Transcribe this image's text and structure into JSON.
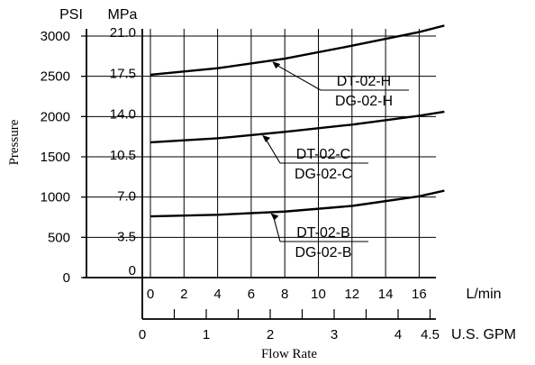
{
  "chart_data": {
    "type": "line",
    "xlabel": "Flow Rate",
    "ylabel": "Pressure",
    "x_unit_primary": "L/min",
    "x_unit_secondary": "U.S. GPM",
    "y_unit_left": "PSI",
    "y_unit_right": "MPa",
    "xlim": [
      0,
      17.5
    ],
    "ylim_psi": [
      0,
      3100
    ],
    "x_ticks_lmin": [
      "0",
      "2",
      "4",
      "6",
      "8",
      "10",
      "12",
      "14",
      "16"
    ],
    "x_ticks_gpm": [
      {
        "label": "0",
        "value": 0
      },
      {
        "label": "1",
        "value": 1
      },
      {
        "label": "2",
        "value": 2
      },
      {
        "label": "3",
        "value": 3
      },
      {
        "label": "4",
        "value": 4
      },
      {
        "label": "4.5",
        "value": 4.5
      }
    ],
    "y_ticks_psi": [
      {
        "label": "0",
        "value": 0
      },
      {
        "label": "500",
        "value": 500
      },
      {
        "label": "1000",
        "value": 1000
      },
      {
        "label": "1500",
        "value": 1500
      },
      {
        "label": "2000",
        "value": 2000
      },
      {
        "label": "2500",
        "value": 2500
      },
      {
        "label": "3000",
        "value": 3000
      }
    ],
    "y_ticks_mpa": [
      {
        "label": "0",
        "value": 0
      },
      {
        "label": "3.5",
        "value": 3.5
      },
      {
        "label": "7.0",
        "value": 7.0
      },
      {
        "label": "10.5",
        "value": 10.5
      },
      {
        "label": "14.0",
        "value": 14.0
      },
      {
        "label": "17.5",
        "value": 17.5
      },
      {
        "label": "21.0",
        "value": 21.0
      }
    ],
    "grid": true,
    "series": [
      {
        "label_top": "DT-02-H",
        "label_bottom": "DG-02-H",
        "x": [
          0,
          4,
          8,
          12,
          16,
          17.5
        ],
        "y": [
          2520,
          2600,
          2720,
          2880,
          3050,
          3130
        ]
      },
      {
        "label_top": "DT-02-C",
        "label_bottom": "DG-02-C",
        "x": [
          0,
          4,
          8,
          12,
          16,
          17.5
        ],
        "y": [
          1680,
          1730,
          1810,
          1900,
          2010,
          2060
        ]
      },
      {
        "label_top": "DT-02-B",
        "label_bottom": "DG-02-B",
        "x": [
          0,
          4,
          8,
          12,
          16,
          17.5
        ],
        "y": [
          760,
          780,
          820,
          890,
          1010,
          1080
        ]
      }
    ]
  }
}
